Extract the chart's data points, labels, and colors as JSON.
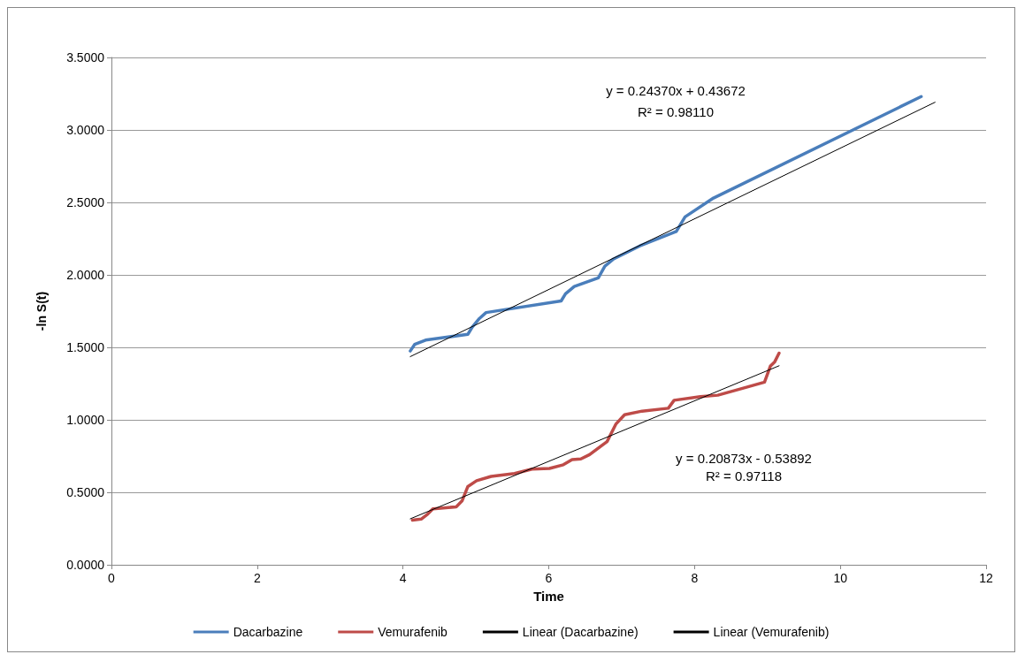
{
  "chart_data": {
    "type": "line",
    "xlabel": "Time",
    "ylabel": "-ln S(t)",
    "xlim": [
      0,
      12
    ],
    "xticks": [
      0,
      2,
      4,
      6,
      8,
      10,
      12
    ],
    "ylim": [
      0,
      3.5
    ],
    "yticks": [
      {
        "value": 0,
        "label": "0.0000"
      },
      {
        "value": 0.5,
        "label": "0.5000"
      },
      {
        "value": 1,
        "label": "1.0000"
      },
      {
        "value": 1.5,
        "label": "1.5000"
      },
      {
        "value": 2,
        "label": "2.0000"
      },
      {
        "value": 2.5,
        "label": "2.5000"
      },
      {
        "value": 3,
        "label": "3.0000"
      },
      {
        "value": 3.5,
        "label": "3.5000"
      }
    ],
    "grid": "y",
    "legend": "bottom",
    "marker": "none",
    "series": [
      {
        "name": "Dacarbazine",
        "color": "#4a7ebb",
        "x": [
          4.1,
          4.16,
          4.31,
          4.89,
          4.95,
          5.05,
          5.14,
          6.17,
          6.23,
          6.35,
          6.68,
          6.77,
          6.89,
          7.25,
          7.75,
          7.87,
          8.26,
          11.11
        ],
        "values": [
          1.475,
          1.52,
          1.55,
          1.59,
          1.64,
          1.7,
          1.74,
          1.82,
          1.87,
          1.92,
          1.98,
          2.06,
          2.11,
          2.2,
          2.3,
          2.4,
          2.53,
          3.23
        ]
      },
      {
        "name": "Vemurafenib",
        "color": "#be4b48",
        "x": [
          4.13,
          4.25,
          4.34,
          4.41,
          4.73,
          4.81,
          4.89,
          5.01,
          5.21,
          5.53,
          5.77,
          6.01,
          6.2,
          6.32,
          6.44,
          6.56,
          6.8,
          6.92,
          7.04,
          7.28,
          7.64,
          7.72,
          8.08,
          8.32,
          8.68,
          8.96,
          9.04,
          9.1,
          9.16
        ],
        "values": [
          0.308,
          0.315,
          0.35,
          0.385,
          0.4,
          0.44,
          0.54,
          0.58,
          0.61,
          0.63,
          0.66,
          0.665,
          0.69,
          0.725,
          0.73,
          0.76,
          0.85,
          0.97,
          1.035,
          1.06,
          1.08,
          1.135,
          1.16,
          1.17,
          1.22,
          1.26,
          1.37,
          1.4,
          1.46
        ]
      },
      {
        "name": "Linear (Dacarbazine)",
        "color": "#000000",
        "x": [
          4.1,
          11.3
        ],
        "values": [
          1.436,
          3.191
        ]
      },
      {
        "name": "Linear (Vemurafenib)",
        "color": "#000000",
        "x": [
          4.1,
          9.16
        ],
        "values": [
          0.317,
          1.373
        ]
      }
    ],
    "annotations": [
      "y = 0.24370x + 0.43672",
      "R² = 0.98110",
      "y = 0.20873x - 0.53892",
      "R² = 0.97118"
    ]
  }
}
